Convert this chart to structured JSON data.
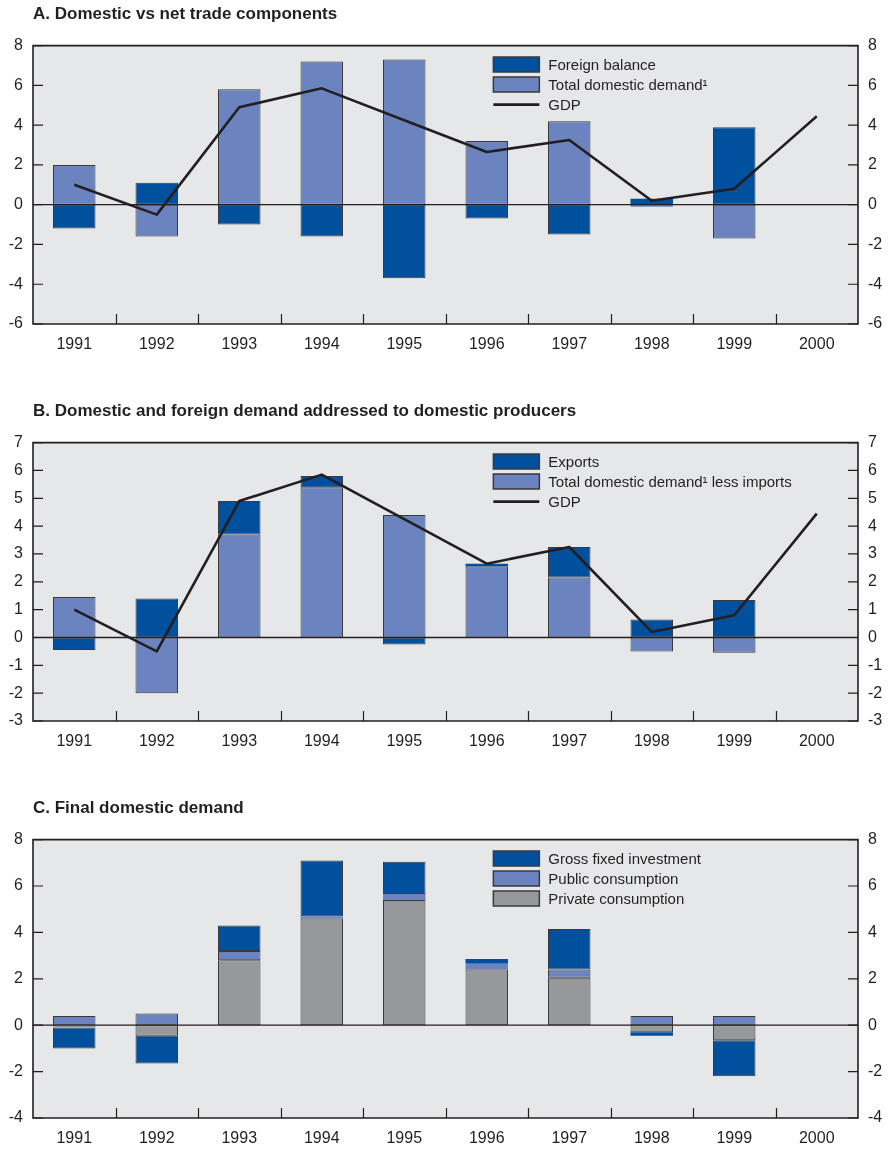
{
  "chart_data": [
    {
      "type": "bar",
      "title": "A. Domestic vs net trade components",
      "categories": [
        "1991",
        "1992",
        "1993",
        "1994",
        "1995",
        "1996",
        "1997",
        "1998",
        "1999",
        "2000"
      ],
      "stacked": true,
      "series": [
        {
          "name": "Total domestic demand¹",
          "color": "#6b84c0",
          "values": [
            2.0,
            -1.6,
            5.8,
            7.2,
            7.3,
            3.2,
            4.2,
            -0.1,
            -1.7,
            null
          ]
        },
        {
          "name": "Foreign balance",
          "color": "#00509d",
          "values": [
            -1.2,
            1.1,
            -1.0,
            -1.6,
            -3.7,
            -0.7,
            -1.5,
            0.3,
            3.9,
            null
          ]
        },
        {
          "name": "GDP",
          "type": "line",
          "color": "#231f20",
          "values": [
            1.0,
            -0.5,
            4.9,
            5.85,
            4.25,
            2.65,
            3.25,
            0.2,
            0.8,
            4.45
          ]
        }
      ],
      "ylim": [
        -6,
        8
      ],
      "yticks": [
        -6,
        -4,
        -2,
        0,
        2,
        4,
        6,
        8
      ],
      "y2lim": [
        -6,
        8
      ],
      "y2ticks": [
        -6,
        -4,
        -2,
        0,
        2,
        4,
        6,
        8
      ],
      "ref_lines": [
        {
          "axis": "y",
          "value": 0,
          "color": "#231f20"
        }
      ],
      "legend": "top right",
      "marker": "none"
    },
    {
      "type": "bar",
      "title": "B. Domestic and foreign demand addressed to domestic producers",
      "categories": [
        "1991",
        "1992",
        "1993",
        "1994",
        "1995",
        "1996",
        "1997",
        "1998",
        "1999",
        "2000"
      ],
      "stacked": true,
      "series": [
        {
          "name": "Total domestic demand¹ less imports",
          "color": "#6b84c0",
          "values": [
            1.45,
            -2.0,
            3.7,
            5.4,
            4.4,
            2.55,
            2.15,
            -0.5,
            -0.55,
            null
          ]
        },
        {
          "name": "Exports",
          "color": "#00509d",
          "values": [
            -0.45,
            1.4,
            1.2,
            0.4,
            -0.25,
            0.1,
            1.1,
            0.65,
            1.35,
            null
          ]
        },
        {
          "name": "GDP",
          "type": "line",
          "color": "#231f20",
          "values": [
            1.0,
            -0.5,
            4.9,
            5.85,
            4.25,
            2.65,
            3.25,
            0.2,
            0.8,
            4.45
          ]
        }
      ],
      "ylim": [
        -3,
        7
      ],
      "yticks": [
        -3,
        -2,
        -1,
        0,
        1,
        2,
        3,
        4,
        5,
        6,
        7
      ],
      "y2lim": [
        -3,
        7
      ],
      "y2ticks": [
        -3,
        -2,
        -1,
        0,
        1,
        2,
        3,
        4,
        5,
        6,
        7
      ],
      "ref_lines": [
        {
          "axis": "y",
          "value": 0,
          "color": "#231f20"
        }
      ],
      "legend": "top right",
      "marker": "none"
    },
    {
      "type": "bar",
      "title": "C. Final domestic demand",
      "categories": [
        "1991",
        "1992",
        "1993",
        "1994",
        "1995",
        "1996",
        "1997",
        "1998",
        "1999",
        "2000"
      ],
      "stacked": true,
      "series": [
        {
          "name": "Private consumption",
          "color": "#97989c",
          "values": [
            -0.1,
            -0.45,
            2.8,
            4.6,
            5.4,
            2.4,
            2.05,
            -0.3,
            -0.65,
            null
          ]
        },
        {
          "name": "Public consumption",
          "color": "#6b84c0",
          "values": [
            0.4,
            0.5,
            0.4,
            0.1,
            0.25,
            0.25,
            0.35,
            0.4,
            0.4,
            null
          ]
        },
        {
          "name": "Gross fixed investment",
          "color": "#00509d",
          "values": [
            -0.9,
            -1.2,
            1.1,
            2.4,
            1.4,
            0.2,
            1.75,
            -0.15,
            -1.55,
            null
          ]
        }
      ],
      "ylim": [
        -4,
        8
      ],
      "yticks": [
        -4,
        -2,
        0,
        2,
        4,
        6,
        8
      ],
      "y2lim": [
        -4,
        8
      ],
      "y2ticks": [
        -4,
        -2,
        0,
        2,
        4,
        6,
        8
      ],
      "ref_lines": [
        {
          "axis": "y",
          "value": 0,
          "color": "#231f20"
        }
      ],
      "legend": "top right"
    }
  ]
}
